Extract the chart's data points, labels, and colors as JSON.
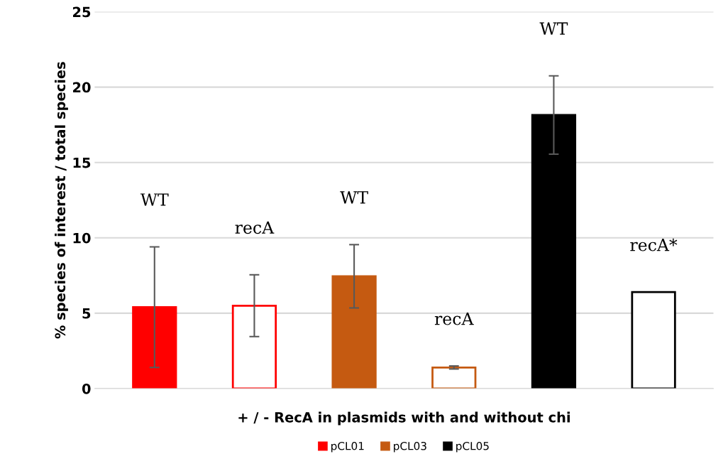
{
  "chart_data": {
    "type": "bar",
    "xlabel": "+ / - RecA in plasmids with and without chi",
    "ylabel": "% species of interest / total species",
    "categories": [
      null,
      null,
      null,
      null,
      null,
      null
    ],
    "series": [
      {
        "name": "pCL01",
        "color": "#ff0000",
        "colors": [
          "#ff0000",
          "#ffffff",
          null,
          null,
          null,
          null
        ],
        "values": [
          5.4,
          5.5,
          null,
          null,
          null,
          null
        ],
        "errors": [
          4.0,
          2.05,
          null,
          null,
          null,
          null
        ]
      },
      {
        "name": "pCL03",
        "color": "#c55a11",
        "colors": [
          null,
          null,
          "#c55a11",
          "#ffffff",
          null,
          null
        ],
        "values": [
          null,
          null,
          7.45,
          1.4,
          null,
          null
        ],
        "errors": [
          null,
          null,
          2.1,
          0.1,
          null,
          null
        ]
      },
      {
        "name": "pCL05",
        "color": "#000000",
        "colors": [
          null,
          null,
          null,
          null,
          "#000000",
          "#ffffff"
        ],
        "values": [
          null,
          null,
          null,
          null,
          18.15,
          6.4
        ],
        "errors": [
          null,
          null,
          null,
          null,
          2.6,
          null
        ]
      }
    ],
    "annotations": [
      "WT",
      "recA",
      "WT",
      "recA",
      "WT",
      "recA*"
    ],
    "ylim": [
      0,
      25
    ],
    "yticks": [
      0,
      5,
      10,
      15,
      20,
      25
    ],
    "grid": "y",
    "legend": "bottom"
  }
}
